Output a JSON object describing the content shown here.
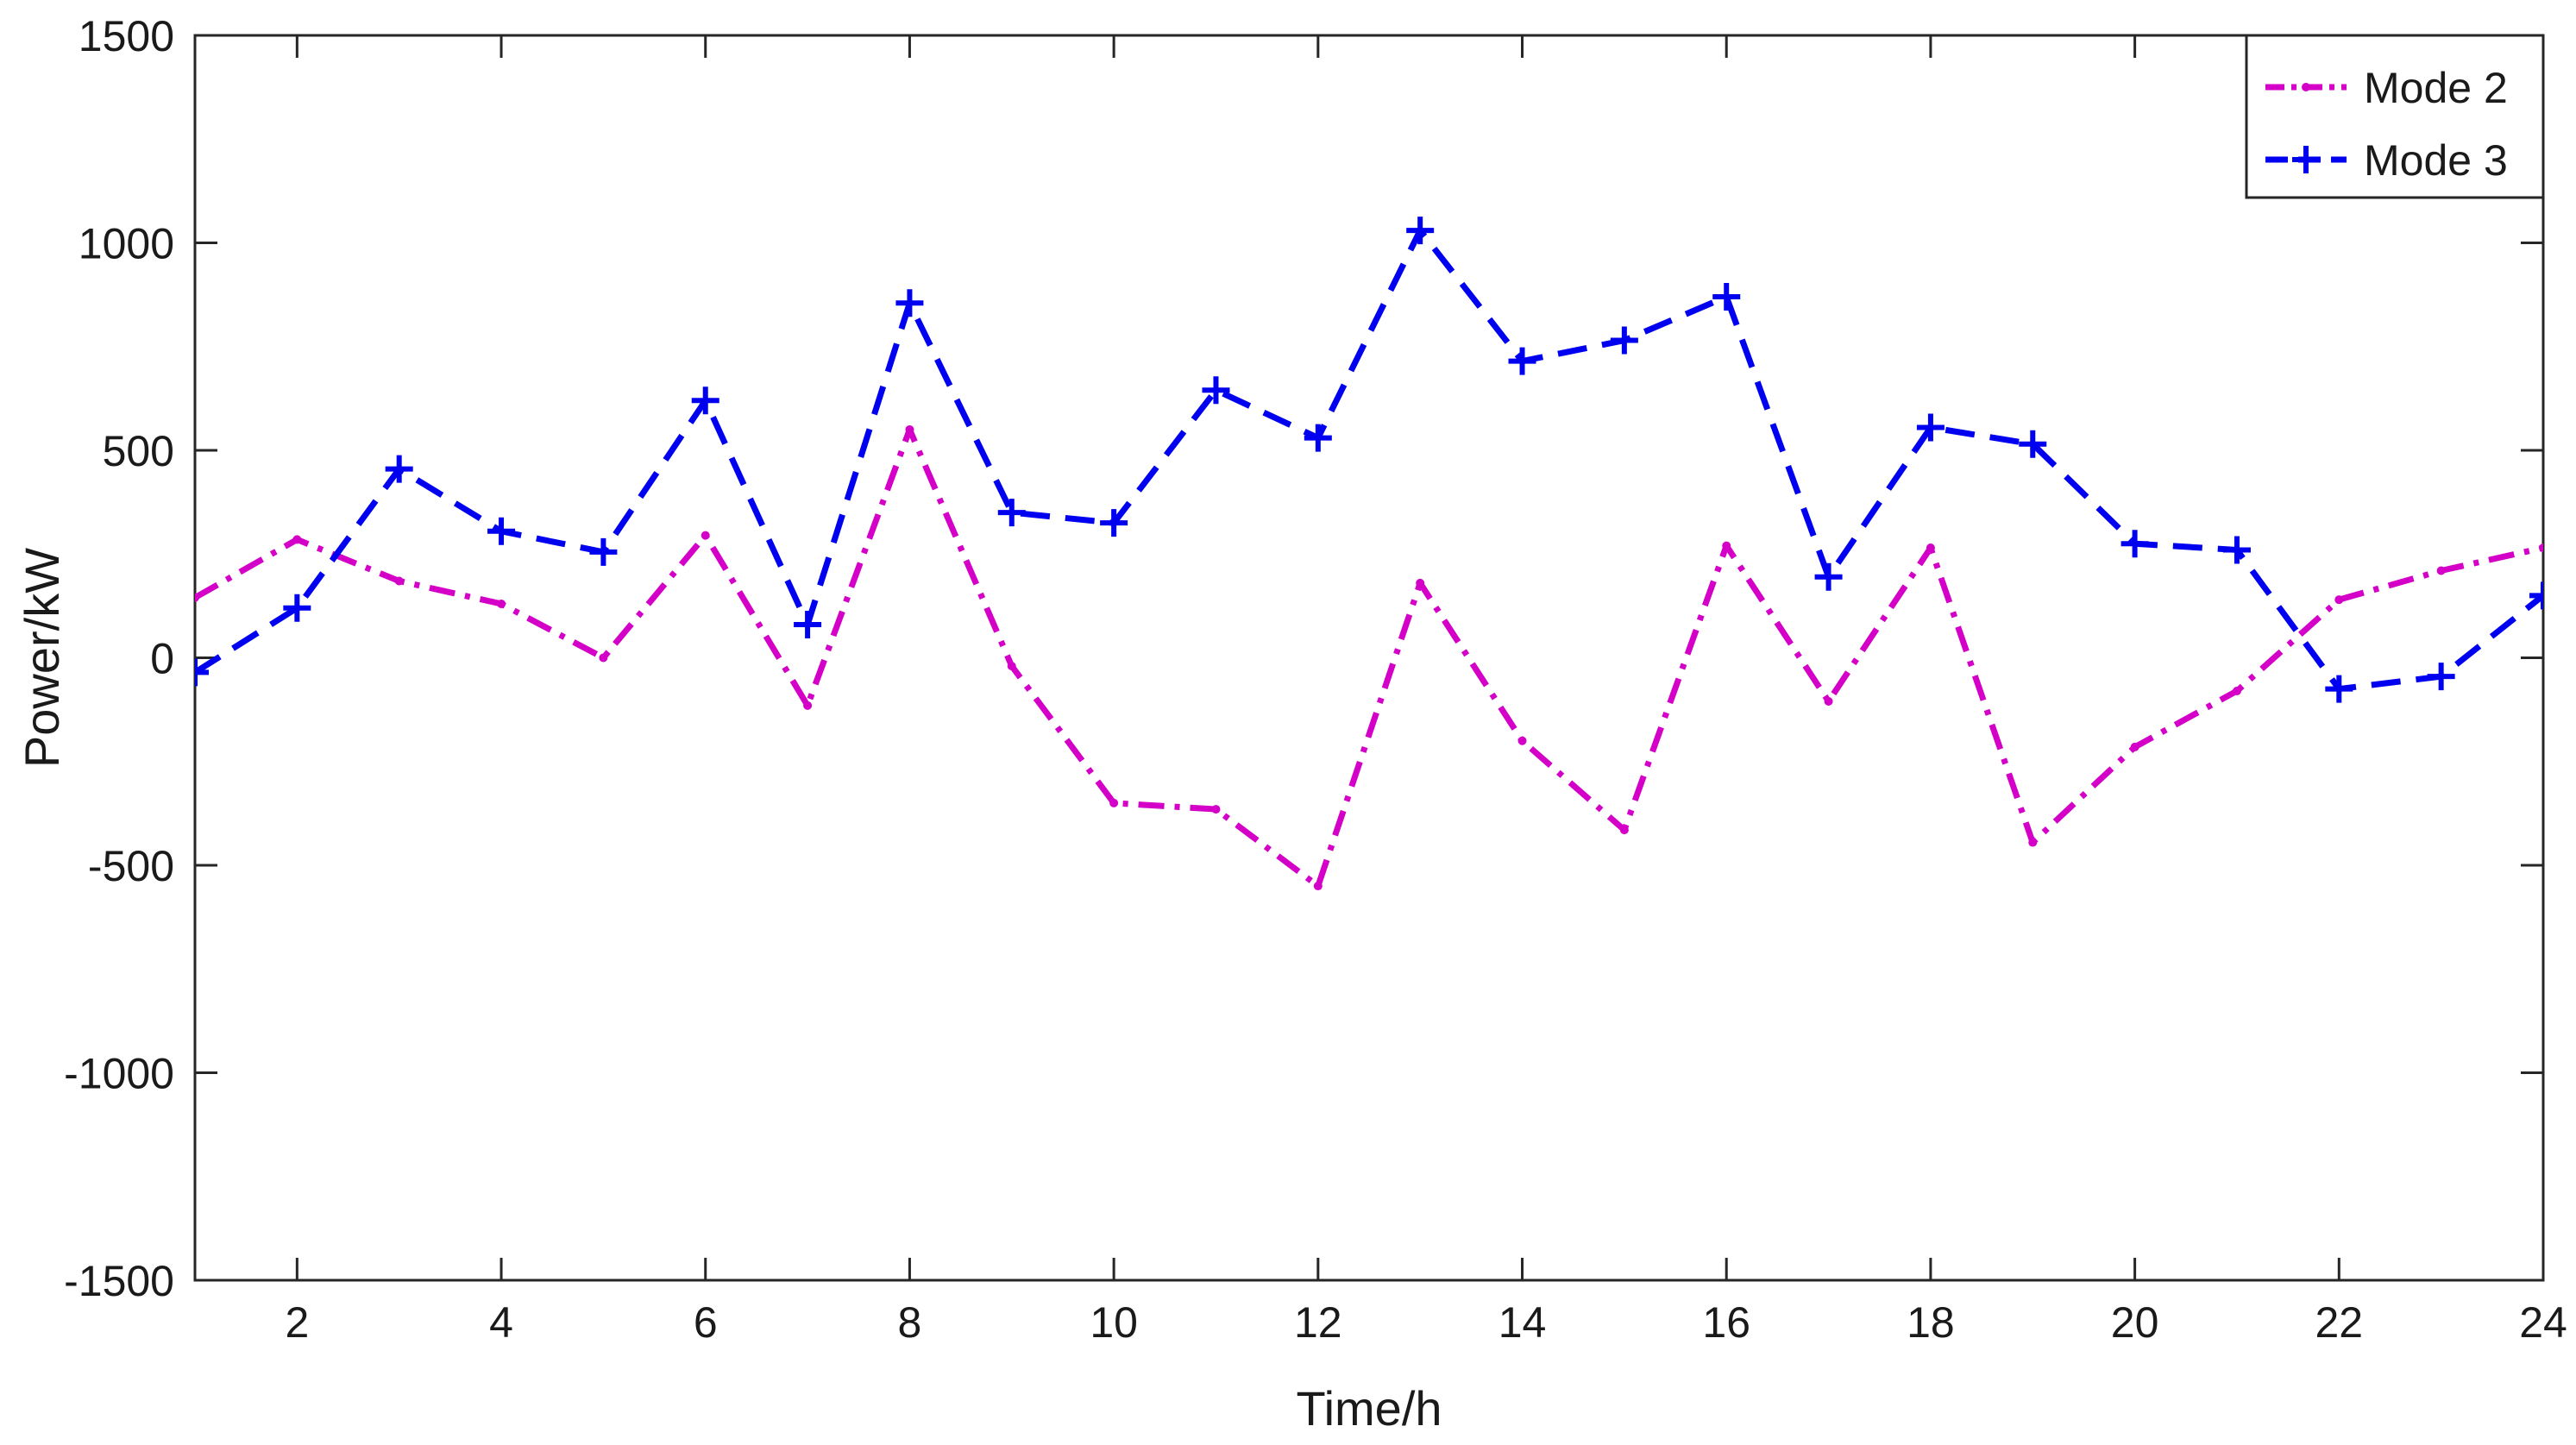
{
  "chart_data": {
    "type": "line",
    "title": "",
    "xlabel": "Time/h",
    "ylabel": "Power/kW",
    "xlim": [
      1,
      24
    ],
    "ylim": [
      -1500,
      1500
    ],
    "x_ticks": [
      "2",
      "4",
      "6",
      "8",
      "10",
      "12",
      "14",
      "16",
      "18",
      "20",
      "22",
      "24"
    ],
    "y_ticks": [
      "1500",
      "1000",
      "500",
      "0",
      "-500",
      "-1000",
      "-1500"
    ],
    "grid": false,
    "legend_position": "top-right",
    "x": [
      1,
      2,
      3,
      4,
      5,
      6,
      7,
      8,
      9,
      10,
      11,
      12,
      13,
      14,
      15,
      16,
      17,
      18,
      19,
      20,
      21,
      22,
      23,
      24
    ],
    "series": [
      {
        "name": "Mode 2",
        "color": "#d400c8",
        "line_style": "dash-dot",
        "marker": "dot",
        "values": [
          145,
          285,
          185,
          130,
          0,
          295,
          -115,
          550,
          -20,
          -350,
          -365,
          -550,
          180,
          -200,
          -415,
          270,
          -105,
          265,
          -445,
          -215,
          -80,
          140,
          210,
          265
        ]
      },
      {
        "name": "Mode 3",
        "color": "#0000f0",
        "line_style": "dashed",
        "marker": "plus",
        "values": [
          -35,
          120,
          455,
          305,
          255,
          620,
          80,
          855,
          350,
          325,
          645,
          530,
          1030,
          715,
          765,
          870,
          195,
          555,
          515,
          275,
          260,
          -75,
          -45,
          150
        ]
      }
    ]
  }
}
